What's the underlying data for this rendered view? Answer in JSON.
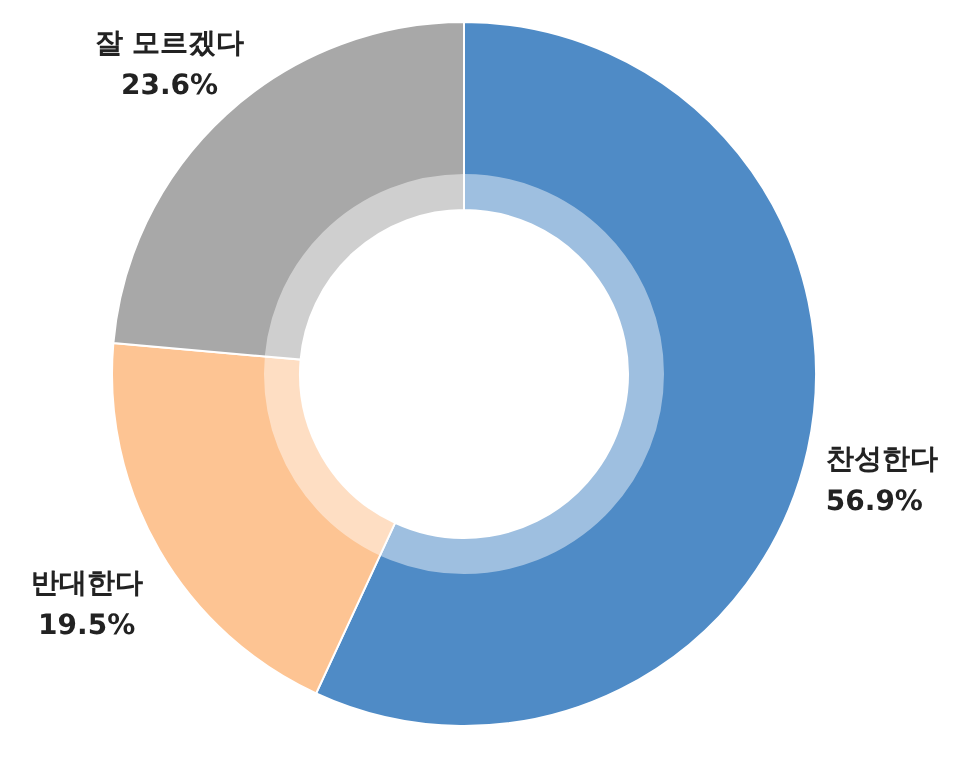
{
  "chart_data": {
    "type": "donut",
    "categories": [
      "찬성한다",
      "반대한다",
      "잘 모르겠다"
    ],
    "values": [
      56.9,
      19.5,
      23.6
    ],
    "colors": [
      "#4f8bc6",
      "#fdc493",
      "#a8a8a8"
    ],
    "value_labels": [
      "56.9%",
      "19.5%",
      "23.6%"
    ]
  }
}
